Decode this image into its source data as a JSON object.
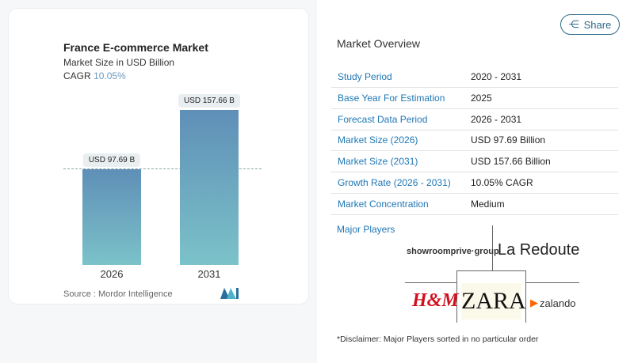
{
  "chart_data": {
    "type": "bar",
    "title": "France E-commerce Market",
    "subtitle": "Market Size in USD Billion",
    "cagr_label": "CAGR",
    "cagr_value": "10.05%",
    "categories": [
      "2026",
      "2031"
    ],
    "values": [
      97.69,
      157.66
    ],
    "data_labels": [
      "USD 97.69 B",
      "USD 157.66 B"
    ],
    "bar_color_top": "#5f8fb7",
    "bar_color_bottom": "#7bc2c9",
    "source": "Source :  Mordor Intelligence"
  },
  "share_label": "Share",
  "overview": {
    "title": "Market Overview",
    "rows": [
      {
        "k": "Study Period",
        "v": "2020 - 2031"
      },
      {
        "k": "Base Year For Estimation",
        "v": "2025"
      },
      {
        "k": "Forecast Data Period",
        "v": "2026 - 2031"
      },
      {
        "k": "Market Size (2026)",
        "v": "USD 97.69 Billion"
      },
      {
        "k": "Market Size (2031)",
        "v": "USD 157.66 Billion"
      },
      {
        "k": "Growth Rate (2026 - 2031)",
        "v": "10.05% CAGR"
      },
      {
        "k": "Market Concentration",
        "v": "Medium"
      }
    ]
  },
  "players": {
    "title": "Major Players",
    "logos": [
      "showroomprive·group",
      "La Redoute",
      "H&M",
      "ZARA",
      "zalando"
    ],
    "disclaimer": "*Disclaimer: Major Players sorted in no particular order"
  }
}
